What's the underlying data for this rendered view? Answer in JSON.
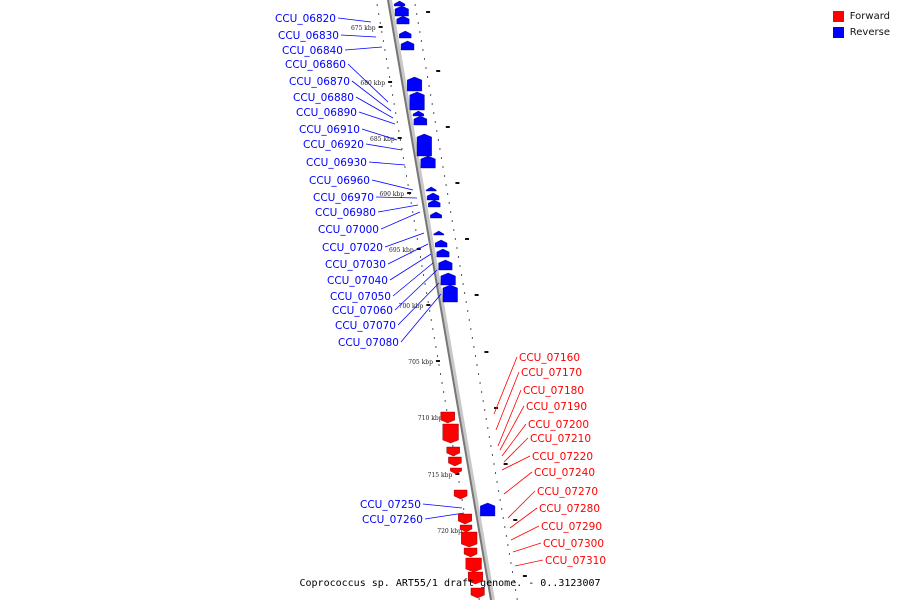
{
  "legend": {
    "forward_label": "Forward",
    "reverse_label": "Reverse",
    "forward_color": "#ff0000",
    "reverse_color": "#0000ff"
  },
  "caption": "Coprococcus sp. ART55/1 draft genome. - 0..3123007",
  "scale_labels": [
    "675 kbp",
    "680 kbp",
    "685 kbp",
    "690 kbp",
    "695 kbp",
    "700 kbp",
    "705 kbp",
    "710 kbp",
    "715 kbp",
    "720 kbp"
  ],
  "reverse_genes": [
    "CCU_06820",
    "CCU_06830",
    "CCU_06840",
    "CCU_06860",
    "CCU_06870",
    "CCU_06880",
    "CCU_06890",
    "CCU_06910",
    "CCU_06920",
    "CCU_06930",
    "CCU_06960",
    "CCU_06970",
    "CCU_06980",
    "CCU_07000",
    "CCU_07020",
    "CCU_07030",
    "CCU_07040",
    "CCU_07050",
    "CCU_07060",
    "CCU_07070",
    "CCU_07080",
    "CCU_07250",
    "CCU_07260"
  ],
  "forward_genes": [
    "CCU_07160",
    "CCU_07170",
    "CCU_07180",
    "CCU_07190",
    "CCU_07200",
    "CCU_07210",
    "CCU_07220",
    "CCU_07240",
    "CCU_07270",
    "CCU_07280",
    "CCU_07290",
    "CCU_07300",
    "CCU_07310"
  ]
}
